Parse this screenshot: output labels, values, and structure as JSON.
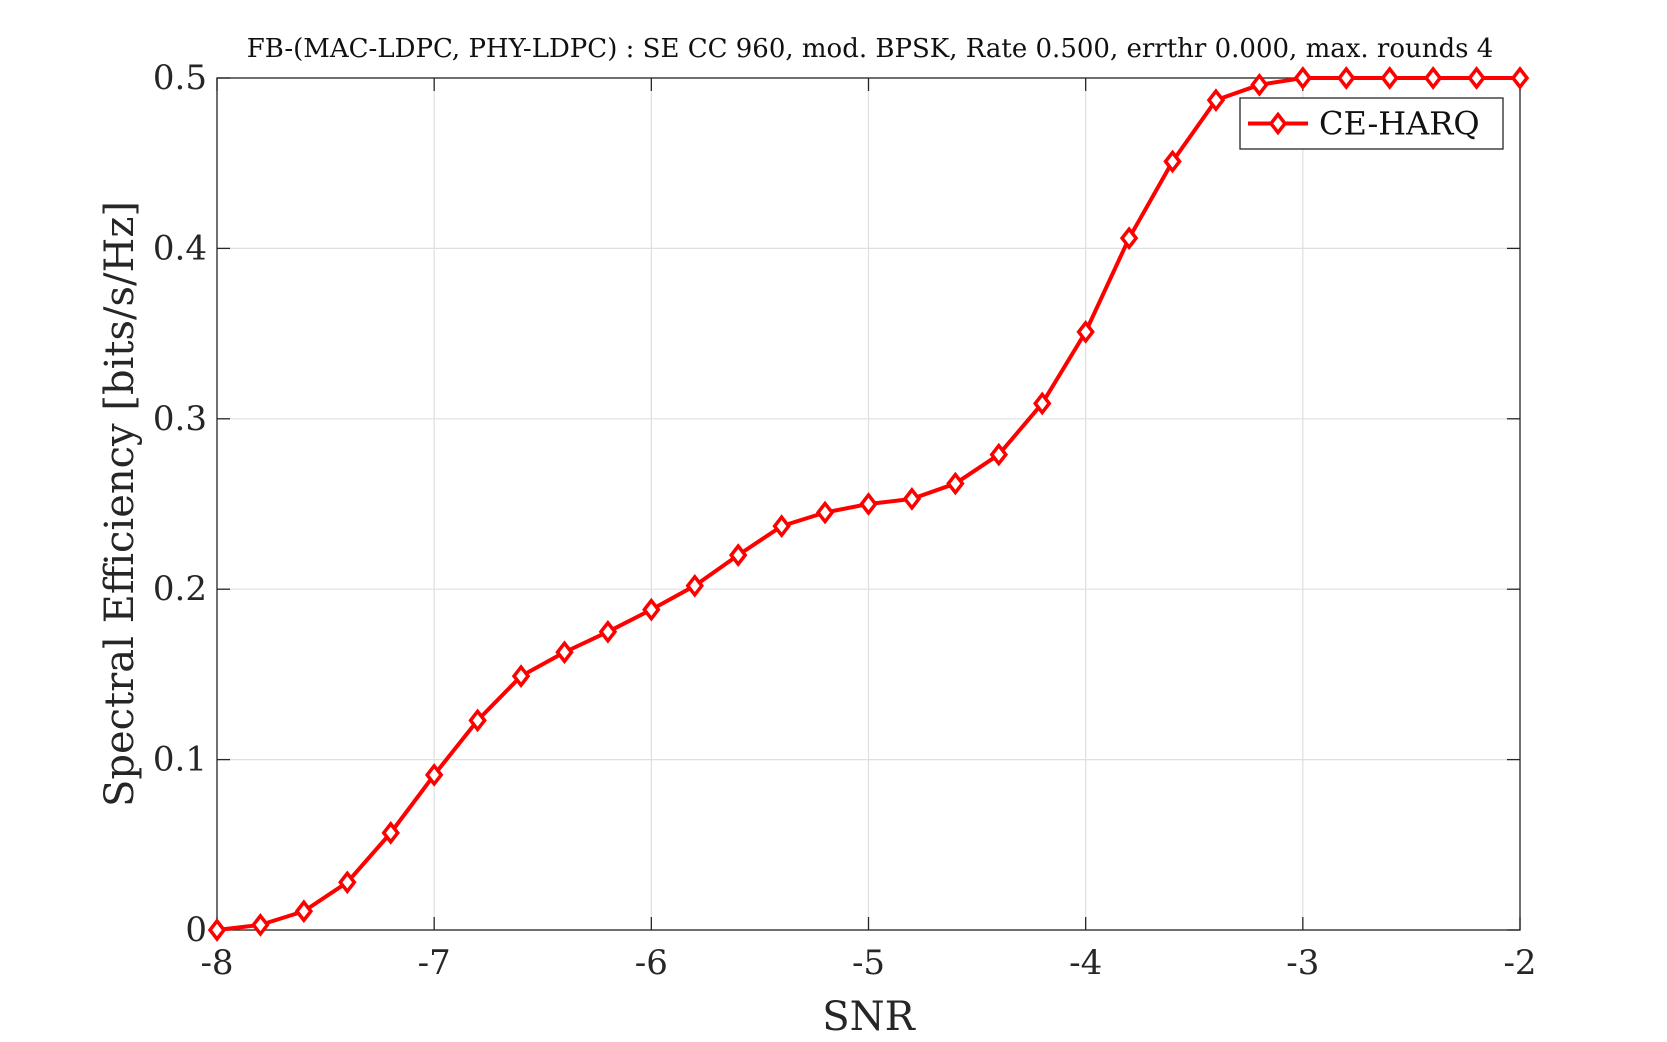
{
  "chart_data": {
    "type": "line",
    "title": "FB-(MAC-LDPC, PHY-LDPC) : SE CC 960, mod. BPSK, Rate 0.500, errthr 0.000, max. rounds 4",
    "xlabel": "SNR",
    "ylabel": "Spectral Efficiency [bits/s/Hz]",
    "xlim": [
      -8,
      -2
    ],
    "ylim": [
      0,
      0.5
    ],
    "xticks": [
      -8,
      -7,
      -6,
      -5,
      -4,
      -3,
      -2
    ],
    "xtick_labels": [
      "-8",
      "-7",
      "-6",
      "-5",
      "-4",
      "-3",
      "-2"
    ],
    "yticks": [
      0,
      0.1,
      0.2,
      0.3,
      0.4,
      0.5
    ],
    "ytick_labels": [
      "0",
      "0.1",
      "0.2",
      "0.3",
      "0.4",
      "0.5"
    ],
    "grid": true,
    "legend_position": "top-right",
    "x": [
      -8,
      -7.8,
      -7.6,
      -7.4,
      -7.2,
      -7,
      -6.8,
      -6.6,
      -6.4,
      -6.2,
      -6,
      -5.8,
      -5.6,
      -5.4,
      -5.2,
      -5,
      -4.8,
      -4.6,
      -4.4,
      -4.2,
      -4,
      -3.8,
      -3.6,
      -3.4,
      -3.2,
      -3,
      -2.8,
      -2.6,
      -2.4,
      -2.2,
      -2
    ],
    "series": [
      {
        "name": "CE-HARQ",
        "color": "#ff0000",
        "marker": "diamond",
        "values": [
          0.0,
          0.003,
          0.011,
          0.028,
          0.057,
          0.091,
          0.123,
          0.149,
          0.163,
          0.175,
          0.188,
          0.202,
          0.22,
          0.237,
          0.245,
          0.25,
          0.253,
          0.262,
          0.279,
          0.309,
          0.351,
          0.406,
          0.451,
          0.487,
          0.496,
          0.5,
          0.5,
          0.5,
          0.5,
          0.5,
          0.5
        ]
      }
    ]
  }
}
